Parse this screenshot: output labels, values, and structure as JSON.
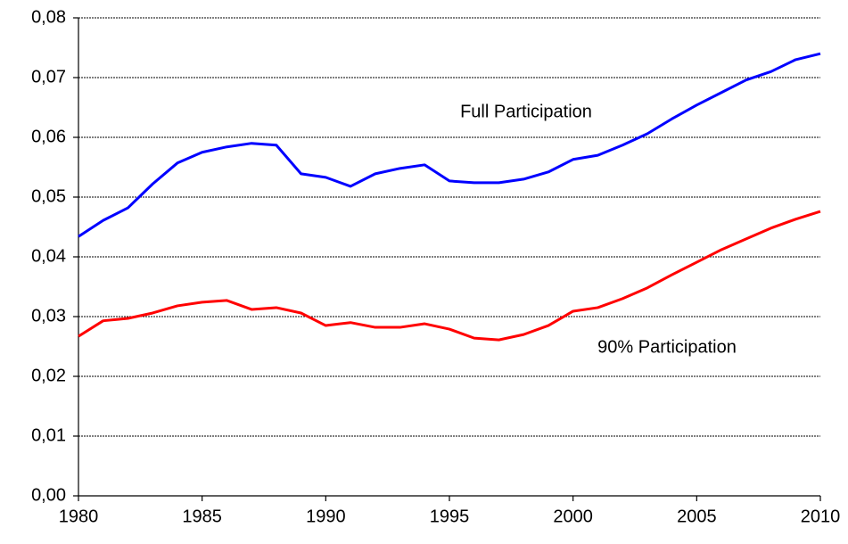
{
  "chart_data": {
    "type": "line",
    "x": [
      1980,
      1981,
      1982,
      1983,
      1984,
      1985,
      1986,
      1987,
      1988,
      1989,
      1990,
      1991,
      1992,
      1993,
      1994,
      1995,
      1996,
      1997,
      1998,
      1999,
      2000,
      2001,
      2002,
      2003,
      2004,
      2005,
      2006,
      2007,
      2008,
      2009,
      2010
    ],
    "series": [
      {
        "name": "Full Participation",
        "color": "#0000ff",
        "values": [
          0.0434,
          0.0461,
          0.0482,
          0.0522,
          0.0557,
          0.0575,
          0.0584,
          0.059,
          0.0587,
          0.0539,
          0.0533,
          0.0518,
          0.0539,
          0.0548,
          0.0554,
          0.0527,
          0.0524,
          0.0524,
          0.053,
          0.0542,
          0.0563,
          0.057,
          0.0587,
          0.0606,
          0.0631,
          0.0654,
          0.0675,
          0.0696,
          0.071,
          0.073,
          0.074
        ]
      },
      {
        "name": "90% Participation",
        "color": "#ff0000",
        "values": [
          0.0267,
          0.0293,
          0.0297,
          0.0306,
          0.0318,
          0.0324,
          0.0327,
          0.0312,
          0.0315,
          0.0306,
          0.0285,
          0.029,
          0.0282,
          0.0282,
          0.0288,
          0.0279,
          0.0264,
          0.0261,
          0.027,
          0.0285,
          0.0309,
          0.0315,
          0.033,
          0.0348,
          0.037,
          0.0391,
          0.0412,
          0.043,
          0.0448,
          0.0463,
          0.0476
        ]
      }
    ],
    "xlim": [
      1980,
      2010
    ],
    "xticks": [
      1980,
      1985,
      1990,
      1995,
      2000,
      2005,
      2010
    ],
    "ylim": [
      0,
      0.08
    ],
    "yticks": [
      {
        "value": 0,
        "label": "0,00"
      },
      {
        "value": 0.01,
        "label": "0,01"
      },
      {
        "value": 0.02,
        "label": "0,02"
      },
      {
        "value": 0.03,
        "label": "0,03"
      },
      {
        "value": 0.04,
        "label": "0,04"
      },
      {
        "value": 0.05,
        "label": "0,05"
      },
      {
        "value": 0.06,
        "label": "0,06"
      },
      {
        "value": 0.07,
        "label": "0,07"
      },
      {
        "value": 0.08,
        "label": "0,08"
      }
    ],
    "grid": true
  }
}
